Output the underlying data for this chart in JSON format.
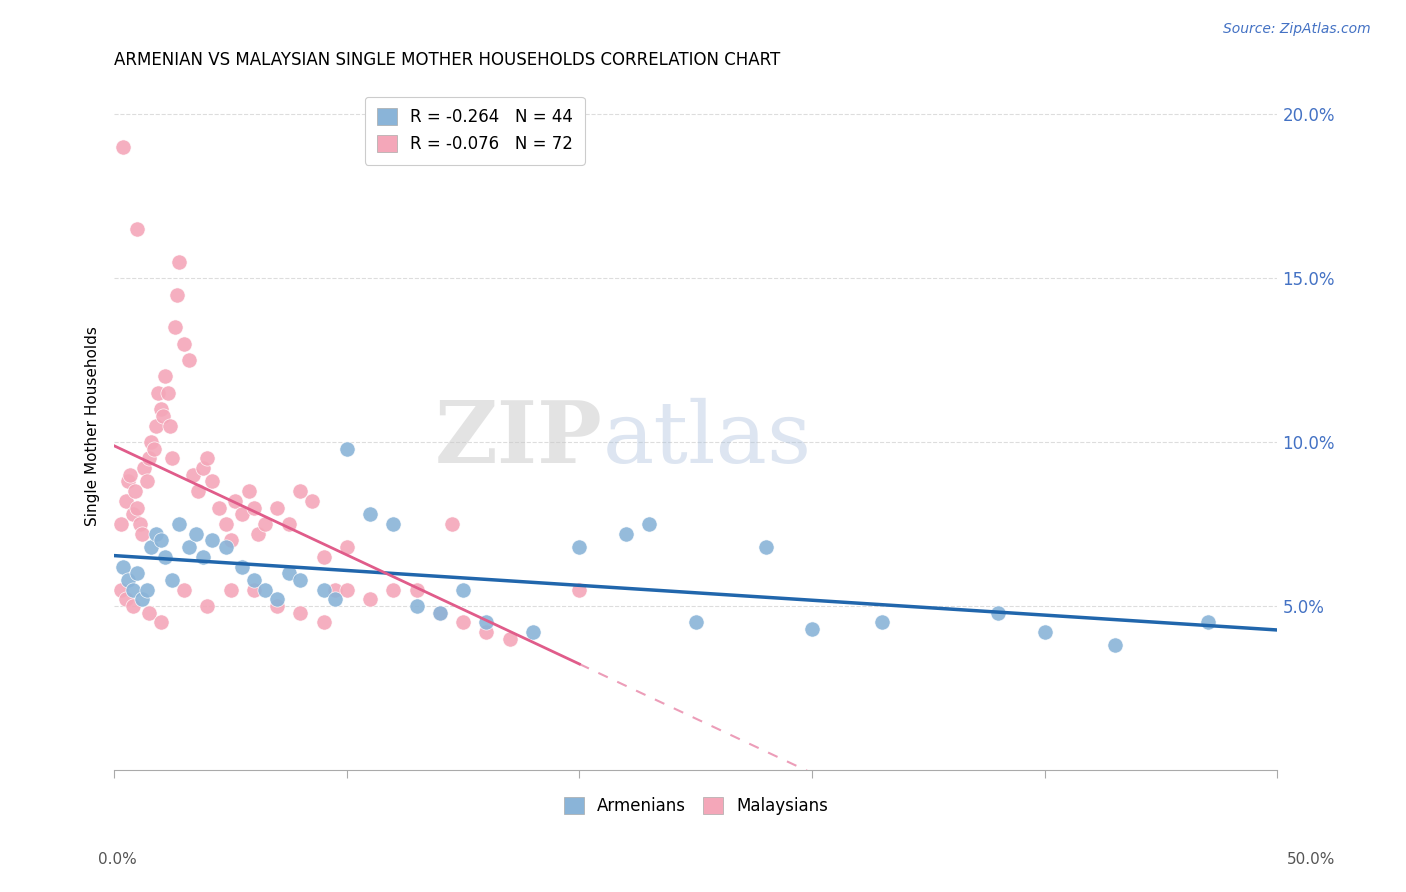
{
  "title": "ARMENIAN VS MALAYSIAN SINGLE MOTHER HOUSEHOLDS CORRELATION CHART",
  "source": "Source: ZipAtlas.com",
  "ylabel": "Single Mother Households",
  "xlim": [
    0,
    50
  ],
  "ylim": [
    0,
    21
  ],
  "yticks": [
    5.0,
    10.0,
    15.0,
    20.0
  ],
  "armenian_color": "#8ab4d8",
  "malaysian_color": "#f4a7b9",
  "armenian_line_color": "#2166ac",
  "malaysian_line_color": "#e05c8a",
  "legend_r_armenian": "R = -0.264",
  "legend_n_armenian": "N = 44",
  "legend_r_malaysian": "R = -0.076",
  "legend_n_malaysian": "N = 72",
  "watermark_zip": "ZIP",
  "watermark_atlas": "atlas",
  "armenian_points": [
    [
      0.4,
      6.2
    ],
    [
      0.6,
      5.8
    ],
    [
      0.8,
      5.5
    ],
    [
      1.0,
      6.0
    ],
    [
      1.2,
      5.2
    ],
    [
      1.4,
      5.5
    ],
    [
      1.6,
      6.8
    ],
    [
      1.8,
      7.2
    ],
    [
      2.0,
      7.0
    ],
    [
      2.2,
      6.5
    ],
    [
      2.5,
      5.8
    ],
    [
      2.8,
      7.5
    ],
    [
      3.2,
      6.8
    ],
    [
      3.5,
      7.2
    ],
    [
      3.8,
      6.5
    ],
    [
      4.2,
      7.0
    ],
    [
      4.8,
      6.8
    ],
    [
      5.5,
      6.2
    ],
    [
      6.0,
      5.8
    ],
    [
      6.5,
      5.5
    ],
    [
      7.0,
      5.2
    ],
    [
      7.5,
      6.0
    ],
    [
      8.0,
      5.8
    ],
    [
      9.0,
      5.5
    ],
    [
      9.5,
      5.2
    ],
    [
      10.0,
      9.8
    ],
    [
      11.0,
      7.8
    ],
    [
      12.0,
      7.5
    ],
    [
      13.0,
      5.0
    ],
    [
      14.0,
      4.8
    ],
    [
      15.0,
      5.5
    ],
    [
      16.0,
      4.5
    ],
    [
      18.0,
      4.2
    ],
    [
      20.0,
      6.8
    ],
    [
      22.0,
      7.2
    ],
    [
      23.0,
      7.5
    ],
    [
      25.0,
      4.5
    ],
    [
      28.0,
      6.8
    ],
    [
      30.0,
      4.3
    ],
    [
      33.0,
      4.5
    ],
    [
      38.0,
      4.8
    ],
    [
      40.0,
      4.2
    ],
    [
      43.0,
      3.8
    ],
    [
      47.0,
      4.5
    ]
  ],
  "malaysian_points": [
    [
      0.3,
      7.5
    ],
    [
      0.5,
      8.2
    ],
    [
      0.6,
      8.8
    ],
    [
      0.7,
      9.0
    ],
    [
      0.8,
      7.8
    ],
    [
      0.9,
      8.5
    ],
    [
      1.0,
      8.0
    ],
    [
      1.1,
      7.5
    ],
    [
      1.2,
      7.2
    ],
    [
      1.3,
      9.2
    ],
    [
      1.4,
      8.8
    ],
    [
      1.5,
      9.5
    ],
    [
      1.6,
      10.0
    ],
    [
      1.7,
      9.8
    ],
    [
      1.8,
      10.5
    ],
    [
      1.9,
      11.5
    ],
    [
      2.0,
      11.0
    ],
    [
      2.1,
      10.8
    ],
    [
      2.2,
      12.0
    ],
    [
      2.3,
      11.5
    ],
    [
      2.4,
      10.5
    ],
    [
      2.5,
      9.5
    ],
    [
      2.6,
      13.5
    ],
    [
      2.7,
      14.5
    ],
    [
      2.8,
      15.5
    ],
    [
      3.0,
      13.0
    ],
    [
      3.2,
      12.5
    ],
    [
      3.4,
      9.0
    ],
    [
      3.6,
      8.5
    ],
    [
      3.8,
      9.2
    ],
    [
      4.0,
      9.5
    ],
    [
      4.2,
      8.8
    ],
    [
      4.5,
      8.0
    ],
    [
      4.8,
      7.5
    ],
    [
      5.0,
      7.0
    ],
    [
      5.2,
      8.2
    ],
    [
      5.5,
      7.8
    ],
    [
      5.8,
      8.5
    ],
    [
      6.0,
      8.0
    ],
    [
      6.2,
      7.2
    ],
    [
      6.5,
      7.5
    ],
    [
      7.0,
      8.0
    ],
    [
      7.5,
      7.5
    ],
    [
      8.0,
      8.5
    ],
    [
      8.5,
      8.2
    ],
    [
      9.0,
      6.5
    ],
    [
      9.5,
      5.5
    ],
    [
      10.0,
      6.8
    ],
    [
      0.4,
      19.0
    ],
    [
      1.0,
      16.5
    ],
    [
      0.3,
      5.5
    ],
    [
      0.5,
      5.2
    ],
    [
      0.8,
      5.0
    ],
    [
      1.5,
      4.8
    ],
    [
      2.0,
      4.5
    ],
    [
      3.0,
      5.5
    ],
    [
      4.0,
      5.0
    ],
    [
      5.0,
      5.5
    ],
    [
      6.0,
      5.5
    ],
    [
      7.0,
      5.0
    ],
    [
      8.0,
      4.8
    ],
    [
      9.0,
      4.5
    ],
    [
      10.0,
      5.5
    ],
    [
      11.0,
      5.2
    ],
    [
      12.0,
      5.5
    ],
    [
      13.0,
      5.5
    ],
    [
      14.0,
      4.8
    ],
    [
      15.0,
      4.5
    ],
    [
      16.0,
      4.2
    ],
    [
      17.0,
      4.0
    ],
    [
      14.5,
      7.5
    ],
    [
      20.0,
      5.5
    ]
  ]
}
